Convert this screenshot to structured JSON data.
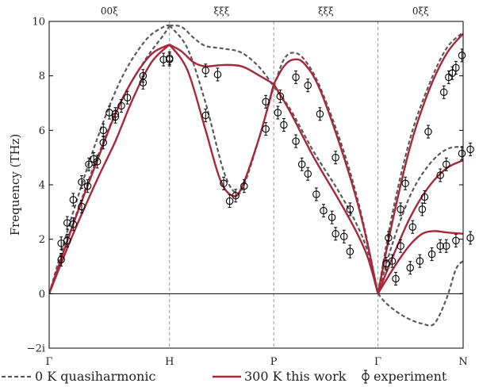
{
  "chart_data": {
    "type": "line",
    "title": "",
    "ylabel": "Frequency (THz)",
    "xlabel": "",
    "ylim": [
      -2,
      10
    ],
    "yticks": [
      {
        "v": -2,
        "label": "−2i"
      },
      {
        "v": 0,
        "label": "0"
      },
      {
        "v": 2,
        "label": "2"
      },
      {
        "v": 4,
        "label": "4"
      },
      {
        "v": 6,
        "label": "6"
      },
      {
        "v": 8,
        "label": "8"
      },
      {
        "v": 10,
        "label": "10"
      }
    ],
    "high_symmetry_points": [
      {
        "x": 0,
        "label": "Γ"
      },
      {
        "x": 1,
        "label": "H"
      },
      {
        "x": 1.866,
        "label": "P"
      },
      {
        "x": 2.732,
        "label": "Γ"
      },
      {
        "x": 3.44,
        "label": "N"
      }
    ],
    "directions": [
      {
        "x": 0.5,
        "label": "00ξ"
      },
      {
        "x": 1.433,
        "label": "ξξξ"
      },
      {
        "x": 2.299,
        "label": "ξξξ"
      },
      {
        "x": 3.086,
        "label": "0ξξ"
      }
    ],
    "legend": {
      "placement": "bottom",
      "entries": [
        {
          "series": "qh",
          "label": "0 K quasiharmonic"
        },
        {
          "series": "tw",
          "label": "300 K this work"
        },
        {
          "series": "exp",
          "label": "experiment"
        }
      ]
    },
    "series": [
      {
        "id": "qh",
        "style": "dashed",
        "color": "#5a5a5a",
        "branches": [
          [
            [
              0,
              0
            ],
            [
              0.2,
              3.0
            ],
            [
              0.4,
              5.7
            ],
            [
              0.6,
              7.9
            ],
            [
              0.8,
              9.3
            ],
            [
              0.95,
              9.8
            ],
            [
              1.0,
              9.85
            ]
          ],
          [
            [
              0,
              0
            ],
            [
              0.2,
              2.6
            ],
            [
              0.4,
              5.0
            ],
            [
              0.6,
              7.1
            ],
            [
              0.8,
              8.6
            ],
            [
              0.95,
              9.5
            ],
            [
              1.0,
              9.85
            ]
          ],
          [
            [
              1.0,
              9.85
            ],
            [
              1.1,
              9.8
            ],
            [
              1.2,
              9.4
            ],
            [
              1.3,
              9.1
            ],
            [
              1.45,
              9.0
            ],
            [
              1.6,
              8.85
            ],
            [
              1.75,
              8.3
            ],
            [
              1.866,
              7.6
            ]
          ],
          [
            [
              1.0,
              9.85
            ],
            [
              1.15,
              9.0
            ],
            [
              1.3,
              7.0
            ],
            [
              1.45,
              4.5
            ],
            [
              1.55,
              3.7
            ],
            [
              1.62,
              4.0
            ],
            [
              1.75,
              5.8
            ],
            [
              1.866,
              7.6
            ]
          ],
          [
            [
              1.866,
              7.6
            ],
            [
              1.95,
              8.6
            ],
            [
              2.03,
              8.85
            ],
            [
              2.12,
              8.6
            ],
            [
              2.25,
              7.6
            ],
            [
              2.45,
              5.2
            ],
            [
              2.6,
              2.8
            ],
            [
              2.732,
              0
            ]
          ],
          [
            [
              1.866,
              7.6
            ],
            [
              2.0,
              6.8
            ],
            [
              2.2,
              5.2
            ],
            [
              2.4,
              3.8
            ],
            [
              2.55,
              2.6
            ],
            [
              2.65,
              1.5
            ],
            [
              2.732,
              0
            ]
          ],
          [
            [
              2.732,
              0
            ],
            [
              2.85,
              2.9
            ],
            [
              3.0,
              5.7
            ],
            [
              3.15,
              7.6
            ],
            [
              3.3,
              9.0
            ],
            [
              3.44,
              9.6
            ]
          ],
          [
            [
              2.732,
              0
            ],
            [
              2.85,
              1.8
            ],
            [
              3.0,
              3.6
            ],
            [
              3.15,
              4.7
            ],
            [
              3.3,
              5.3
            ],
            [
              3.44,
              5.4
            ]
          ],
          [
            [
              2.732,
              0
            ],
            [
              2.8,
              -0.35
            ],
            [
              2.9,
              -0.7
            ],
            [
              3.0,
              -0.95
            ],
            [
              3.1,
              -1.1
            ],
            [
              3.2,
              -1.1
            ],
            [
              3.3,
              -0.2
            ],
            [
              3.38,
              0.9
            ],
            [
              3.44,
              1.2
            ]
          ]
        ]
      },
      {
        "id": "tw",
        "style": "solid",
        "color": "#a8283a",
        "branches": [
          [
            [
              0,
              0
            ],
            [
              0.2,
              2.55
            ],
            [
              0.4,
              4.9
            ],
            [
              0.55,
              6.6
            ],
            [
              0.7,
              7.9
            ],
            [
              0.85,
              8.8
            ],
            [
              1.0,
              9.15
            ]
          ],
          [
            [
              0,
              0
            ],
            [
              0.2,
              2.2
            ],
            [
              0.4,
              4.2
            ],
            [
              0.55,
              5.6
            ],
            [
              0.7,
              7.2
            ],
            [
              0.85,
              8.5
            ],
            [
              1.0,
              9.15
            ]
          ],
          [
            [
              1.0,
              9.15
            ],
            [
              1.1,
              8.9
            ],
            [
              1.2,
              8.5
            ],
            [
              1.3,
              8.35
            ],
            [
              1.45,
              8.4
            ],
            [
              1.6,
              8.35
            ],
            [
              1.75,
              8.0
            ],
            [
              1.866,
              7.7
            ]
          ],
          [
            [
              1.0,
              9.15
            ],
            [
              1.15,
              8.2
            ],
            [
              1.3,
              6.0
            ],
            [
              1.42,
              4.2
            ],
            [
              1.52,
              3.6
            ],
            [
              1.6,
              3.9
            ],
            [
              1.75,
              5.8
            ],
            [
              1.866,
              7.7
            ]
          ],
          [
            [
              1.866,
              7.7
            ],
            [
              1.95,
              8.35
            ],
            [
              2.03,
              8.6
            ],
            [
              2.12,
              8.45
            ],
            [
              2.25,
              7.5
            ],
            [
              2.45,
              5.0
            ],
            [
              2.6,
              2.7
            ],
            [
              2.732,
              0
            ]
          ],
          [
            [
              1.866,
              7.7
            ],
            [
              2.0,
              6.7
            ],
            [
              2.2,
              5.0
            ],
            [
              2.4,
              3.5
            ],
            [
              2.55,
              2.3
            ],
            [
              2.65,
              1.3
            ],
            [
              2.732,
              0
            ]
          ],
          [
            [
              2.732,
              0
            ],
            [
              2.85,
              2.6
            ],
            [
              3.0,
              5.4
            ],
            [
              3.15,
              7.4
            ],
            [
              3.3,
              8.8
            ],
            [
              3.44,
              9.55
            ]
          ],
          [
            [
              2.732,
              0
            ],
            [
              2.85,
              1.3
            ],
            [
              3.0,
              2.8
            ],
            [
              3.15,
              3.9
            ],
            [
              3.3,
              4.6
            ],
            [
              3.44,
              4.9
            ]
          ],
          [
            [
              2.732,
              0
            ],
            [
              2.8,
              0.5
            ],
            [
              2.9,
              1.2
            ],
            [
              3.0,
              1.8
            ],
            [
              3.1,
              2.2
            ],
            [
              3.2,
              2.3
            ],
            [
              3.3,
              2.25
            ],
            [
              3.44,
              2.2
            ]
          ]
        ]
      }
    ],
    "experiment": [
      [
        0.1,
        1.25
      ],
      [
        0.1,
        1.85
      ],
      [
        0.15,
        1.95
      ],
      [
        0.15,
        2.6
      ],
      [
        0.2,
        2.55
      ],
      [
        0.2,
        3.45
      ],
      [
        0.27,
        3.2
      ],
      [
        0.27,
        4.1
      ],
      [
        0.32,
        3.95
      ],
      [
        0.33,
        4.75
      ],
      [
        0.37,
        4.95
      ],
      [
        0.4,
        4.85
      ],
      [
        0.45,
        5.55
      ],
      [
        0.45,
        6.0
      ],
      [
        0.5,
        6.65
      ],
      [
        0.55,
        6.6
      ],
      [
        0.55,
        6.5
      ],
      [
        0.6,
        6.9
      ],
      [
        0.65,
        7.2
      ],
      [
        0.78,
        7.75
      ],
      [
        0.78,
        8.0
      ],
      [
        0.95,
        8.6
      ],
      [
        1.0,
        8.6
      ],
      [
        1.0,
        8.65
      ],
      [
        1.3,
        8.2
      ],
      [
        1.3,
        6.55
      ],
      [
        1.4,
        8.05
      ],
      [
        1.45,
        4.05
      ],
      [
        1.5,
        3.4
      ],
      [
        1.55,
        3.6
      ],
      [
        1.62,
        3.95
      ],
      [
        1.8,
        7.05
      ],
      [
        1.8,
        6.05
      ],
      [
        1.9,
        6.65
      ],
      [
        1.92,
        7.25
      ],
      [
        1.95,
        6.2
      ],
      [
        2.05,
        7.95
      ],
      [
        2.05,
        5.6
      ],
      [
        2.1,
        4.75
      ],
      [
        2.15,
        7.65
      ],
      [
        2.15,
        4.4
      ],
      [
        2.22,
        3.65
      ],
      [
        2.25,
        6.6
      ],
      [
        2.28,
        3.05
      ],
      [
        2.35,
        2.8
      ],
      [
        2.38,
        5.0
      ],
      [
        2.38,
        2.2
      ],
      [
        2.45,
        2.1
      ],
      [
        2.5,
        3.1
      ],
      [
        2.5,
        1.55
      ],
      [
        2.8,
        1.1
      ],
      [
        2.82,
        2.05
      ],
      [
        2.85,
        1.2
      ],
      [
        2.88,
        0.55
      ],
      [
        2.92,
        3.1
      ],
      [
        2.92,
        1.75
      ],
      [
        2.96,
        4.05
      ],
      [
        3.0,
        0.95
      ],
      [
        3.02,
        2.45
      ],
      [
        3.08,
        1.2
      ],
      [
        3.1,
        3.1
      ],
      [
        3.12,
        3.55
      ],
      [
        3.15,
        5.95
      ],
      [
        3.18,
        1.45
      ],
      [
        3.25,
        4.35
      ],
      [
        3.25,
        1.75
      ],
      [
        3.28,
        7.4
      ],
      [
        3.3,
        1.75
      ],
      [
        3.3,
        4.75
      ],
      [
        3.32,
        7.95
      ],
      [
        3.35,
        8.1
      ],
      [
        3.38,
        8.3
      ],
      [
        3.38,
        1.95
      ],
      [
        3.43,
        5.15
      ],
      [
        3.43,
        8.75
      ],
      [
        3.5,
        5.3
      ],
      [
        3.5,
        2.05
      ]
    ]
  }
}
